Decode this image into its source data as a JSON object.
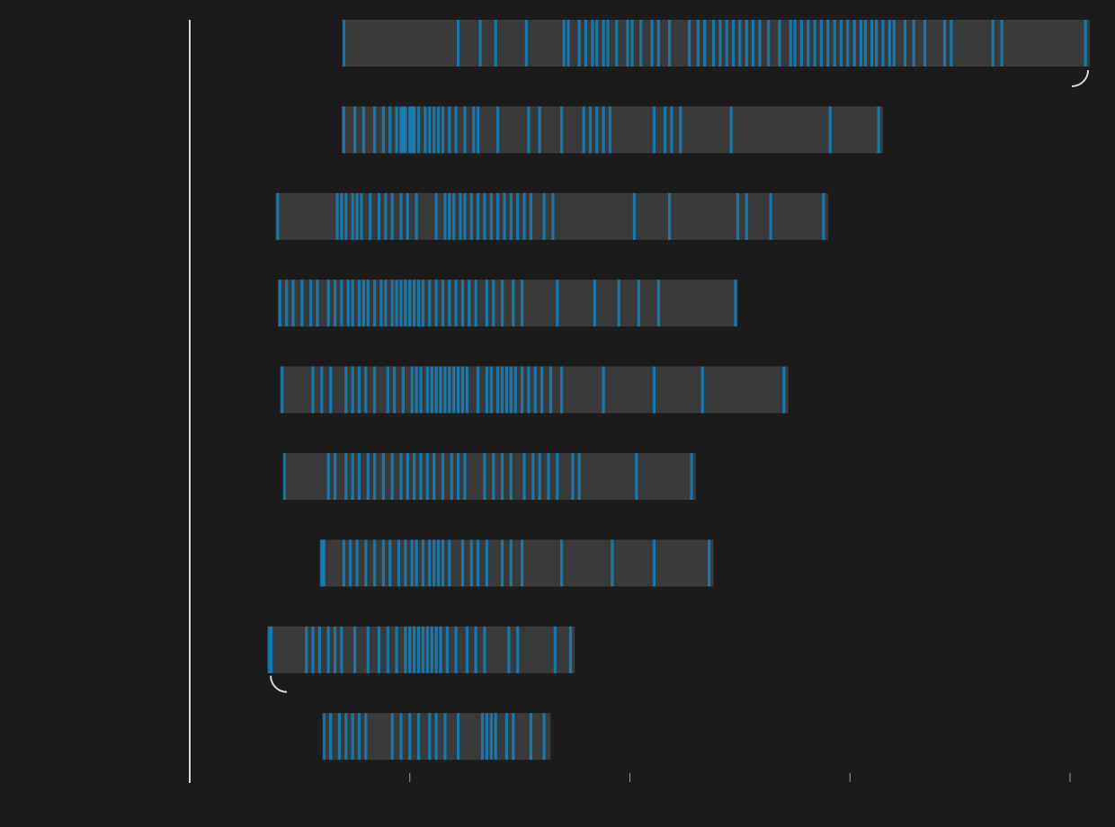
{
  "colors": {
    "background": "#1b1b1b",
    "track": "#3a3a3a",
    "event": "#0c8fd6",
    "axis": "#d8d8d8",
    "tick": "#9a9a9a"
  },
  "chart_data": {
    "type": "timeline",
    "title": "",
    "xlabel": "",
    "ylabel": "",
    "x_ticks": [
      1,
      2,
      3,
      4
    ],
    "xlim": [
      0,
      4.09
    ],
    "grid": false,
    "rows": [
      {
        "start": 0.7,
        "end": 4.09,
        "marker": "end",
        "events": [
          0.7,
          1.22,
          1.32,
          1.39,
          1.53,
          1.7,
          1.72,
          1.77,
          1.8,
          1.83,
          1.85,
          1.88,
          1.9,
          1.94,
          1.99,
          2.01,
          2.05,
          2.1,
          2.13,
          2.18,
          2.27,
          2.31,
          2.34,
          2.38,
          2.41,
          2.44,
          2.47,
          2.5,
          2.53,
          2.56,
          2.59,
          2.63,
          2.68,
          2.73,
          2.75,
          2.78,
          2.81,
          2.84,
          2.87,
          2.9,
          2.93,
          2.96,
          2.99,
          3.02,
          3.05,
          3.07,
          3.1,
          3.12,
          3.15,
          3.18,
          3.2,
          3.25,
          3.29,
          3.34,
          3.43,
          3.46,
          3.65,
          3.69,
          4.07
        ]
      },
      {
        "start": 0.69,
        "end": 3.15,
        "marker": "none",
        "events": [
          0.7,
          0.75,
          0.79,
          0.84,
          0.88,
          0.91,
          0.94,
          0.96,
          0.97,
          0.98,
          1.0,
          1.01,
          1.02,
          1.04,
          1.07,
          1.09,
          1.11,
          1.13,
          1.15,
          1.18,
          1.21,
          1.25,
          1.29,
          1.31,
          1.4,
          1.54,
          1.59,
          1.69,
          1.79,
          1.82,
          1.85,
          1.88,
          1.91,
          2.11,
          2.16,
          2.19,
          2.23,
          2.46,
          2.91,
          3.13
        ]
      },
      {
        "start": 0.39,
        "end": 2.9,
        "marker": "none",
        "events": [
          0.4,
          0.67,
          0.69,
          0.71,
          0.74,
          0.76,
          0.78,
          0.82,
          0.86,
          0.89,
          0.92,
          0.96,
          0.99,
          1.03,
          1.12,
          1.16,
          1.18,
          1.2,
          1.23,
          1.25,
          1.28,
          1.31,
          1.34,
          1.37,
          1.4,
          1.43,
          1.46,
          1.49,
          1.52,
          1.55,
          1.61,
          1.65,
          2.02,
          2.18,
          2.49,
          2.53,
          2.64,
          2.88
        ]
      },
      {
        "start": 0.4,
        "end": 2.49,
        "marker": "none",
        "events": [
          0.41,
          0.44,
          0.47,
          0.51,
          0.55,
          0.58,
          0.63,
          0.66,
          0.69,
          0.72,
          0.74,
          0.77,
          0.79,
          0.81,
          0.84,
          0.87,
          0.89,
          0.92,
          0.94,
          0.96,
          0.98,
          1.0,
          1.02,
          1.04,
          1.06,
          1.09,
          1.12,
          1.15,
          1.18,
          1.21,
          1.24,
          1.27,
          1.3,
          1.35,
          1.38,
          1.42,
          1.47,
          1.51,
          1.67,
          1.84,
          1.95,
          2.04,
          2.13,
          2.48
        ]
      },
      {
        "start": 0.41,
        "end": 2.72,
        "marker": "none",
        "events": [
          0.42,
          0.56,
          0.6,
          0.64,
          0.71,
          0.74,
          0.77,
          0.8,
          0.84,
          0.9,
          0.93,
          0.97,
          1.01,
          1.03,
          1.05,
          1.08,
          1.1,
          1.12,
          1.14,
          1.16,
          1.18,
          1.2,
          1.22,
          1.24,
          1.26,
          1.31,
          1.35,
          1.37,
          1.4,
          1.42,
          1.44,
          1.46,
          1.48,
          1.51,
          1.54,
          1.57,
          1.6,
          1.64,
          1.69,
          1.88,
          2.11,
          2.33,
          2.7
        ]
      },
      {
        "start": 0.43,
        "end": 2.3,
        "marker": "none",
        "events": [
          0.43,
          0.63,
          0.66,
          0.71,
          0.74,
          0.77,
          0.81,
          0.84,
          0.88,
          0.92,
          0.96,
          0.99,
          1.02,
          1.05,
          1.08,
          1.11,
          1.15,
          1.19,
          1.22,
          1.25,
          1.34,
          1.38,
          1.42,
          1.46,
          1.52,
          1.56,
          1.59,
          1.63,
          1.67,
          1.74,
          1.77,
          2.03,
          2.28
        ]
      },
      {
        "start": 0.59,
        "end": 2.38,
        "marker": "none",
        "events": [
          0.6,
          0.61,
          0.7,
          0.73,
          0.76,
          0.8,
          0.84,
          0.88,
          0.91,
          0.95,
          0.98,
          1.01,
          1.03,
          1.06,
          1.09,
          1.11,
          1.13,
          1.15,
          1.18,
          1.24,
          1.28,
          1.31,
          1.35,
          1.42,
          1.46,
          1.51,
          1.69,
          1.92,
          2.11,
          2.36
        ]
      },
      {
        "start": 0.36,
        "end": 1.75,
        "marker": "start",
        "events": [
          0.36,
          0.37,
          0.53,
          0.56,
          0.59,
          0.63,
          0.66,
          0.69,
          0.75,
          0.81,
          0.86,
          0.9,
          0.94,
          0.98,
          1.0,
          1.02,
          1.04,
          1.06,
          1.08,
          1.1,
          1.12,
          1.14,
          1.17,
          1.21,
          1.26,
          1.3,
          1.34,
          1.45,
          1.49,
          1.66,
          1.73
        ]
      },
      {
        "start": 0.61,
        "end": 1.64,
        "marker": "none",
        "events": [
          0.61,
          0.64,
          0.68,
          0.71,
          0.74,
          0.77,
          0.8,
          0.92,
          0.96,
          1.0,
          1.04,
          1.09,
          1.12,
          1.16,
          1.22,
          1.33,
          1.35,
          1.37,
          1.39,
          1.44,
          1.47,
          1.55,
          1.61
        ]
      }
    ]
  }
}
